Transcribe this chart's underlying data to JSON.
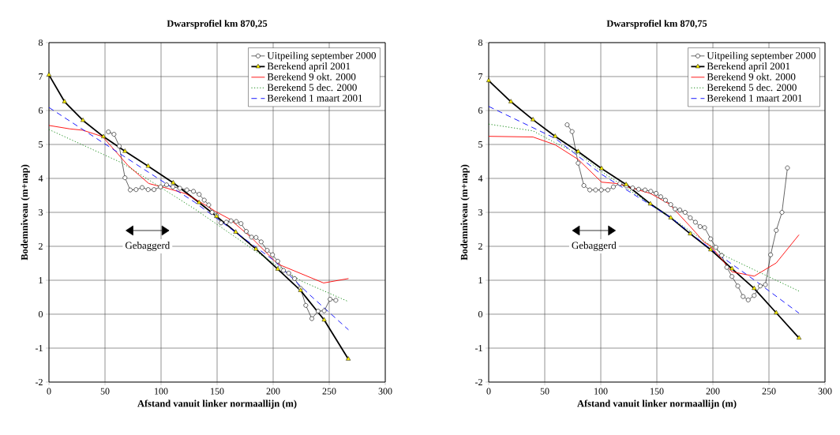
{
  "chart_data": [
    {
      "type": "line",
      "title": "Dwarsprofiel km 870,25",
      "xlabel": "Afstand vanuit linker normaallijn (m)",
      "ylabel": "Bodemniveau (m+nap)",
      "xlim": [
        0,
        300
      ],
      "ylim": [
        -2,
        8
      ],
      "xticks": [
        0,
        50,
        100,
        150,
        200,
        250,
        300
      ],
      "yticks": [
        -2,
        -1,
        0,
        1,
        2,
        3,
        4,
        5,
        6,
        7,
        8
      ],
      "grid": true,
      "legend": "top right",
      "annotations": [
        "Gebaggerd"
      ],
      "series": [
        {
          "name": "Uitpeiling september 2000",
          "color": "#000000",
          "marker": "circle",
          "line_style": "solid",
          "x": [
            53.0,
            58.0,
            62.7,
            67.8,
            72.5,
            77.7,
            83.1,
            88.5,
            93.7,
            99.5,
            104.9,
            110.6,
            116.7,
            123.0,
            128.9,
            134.0,
            138.5,
            142.5,
            145.5,
            149.5,
            153.5,
            158.2,
            162.4,
            167.1,
            171.3,
            176,
            180.7,
            184.7,
            189.3,
            194.7,
            199.4,
            204.1,
            209.2,
            213.9,
            219.1,
            224.4,
            229.1,
            234.5,
            240.1,
            245.5,
            250.8,
            255.9
          ],
          "values": [
            5.37,
            5.3,
            4.95,
            4.02,
            3.66,
            3.67,
            3.73,
            3.67,
            3.67,
            3.75,
            3.81,
            3.75,
            3.71,
            3.66,
            3.62,
            3.53,
            3.36,
            3.22,
            3.0,
            2.91,
            2.69,
            2.71,
            2.75,
            2.73,
            2.67,
            2.44,
            2.27,
            2.26,
            2.13,
            1.88,
            1.75,
            1.56,
            1.29,
            1.21,
            1.05,
            0.76,
            0.26,
            -0.13,
            0.09,
            0.1,
            0.44,
            0.41
          ]
        },
        {
          "name": "Berekend april 2001",
          "color": "#000000",
          "marker": "triangle",
          "line_style": "solid",
          "x": [
            0,
            13.9,
            30.3,
            48.6,
            67.8,
            88.5,
            110.8,
            133.9,
            149.5,
            166.6,
            184.6,
            204.1,
            224.4,
            245.5,
            267
          ],
          "values": [
            7.05,
            6.26,
            5.71,
            5.23,
            4.8,
            4.36,
            3.87,
            3.29,
            2.88,
            2.42,
            1.92,
            1.33,
            0.7,
            -0.17,
            -1.32
          ]
        },
        {
          "name": "Berekend 9 okt. 2000",
          "color": "#ff0000",
          "marker": "none",
          "line_style": "solid",
          "x": [
            0,
            18.5,
            30.3,
            47.9,
            65.5,
            70.2,
            89,
            105.4,
            122,
            141.3,
            148.4,
            161.3,
            181.1,
            202.2,
            206.9,
            245,
            267.2
          ],
          "values": [
            5.56,
            5.46,
            5.42,
            5.23,
            4.57,
            4.39,
            3.85,
            3.71,
            3.55,
            3.18,
            3.03,
            2.8,
            2.24,
            1.54,
            1.44,
            0.92,
            1.05
          ]
        },
        {
          "name": "Berekend 5 dec. 2000",
          "color": "#008000",
          "marker": "none",
          "line_style": "dotted",
          "x": [
            0,
            65.5,
            130,
            200,
            225.6,
            267.2
          ],
          "values": [
            5.44,
            4.45,
            3.1,
            1.5,
            0.97,
            0.37
          ]
        },
        {
          "name": "Berekend 1 maart 2001",
          "color": "#0000ff",
          "marker": "none",
          "line_style": "dashed",
          "x": [
            0,
            65.5,
            130,
            200,
            232.6,
            267.2
          ],
          "values": [
            6.09,
            4.68,
            3.3,
            1.6,
            0.57,
            -0.46
          ]
        }
      ]
    },
    {
      "type": "line",
      "title": "Dwarsprofiel km 870,75",
      "xlabel": "Afstand vanuit linker normaallijn (m)",
      "ylabel": "Bodemniveau (m+nap)",
      "xlim": [
        0,
        300
      ],
      "ylim": [
        -2,
        8
      ],
      "xticks": [
        0,
        50,
        100,
        150,
        200,
        250,
        300
      ],
      "yticks": [
        -2,
        -1,
        0,
        1,
        2,
        3,
        4,
        5,
        6,
        7,
        8
      ],
      "grid": true,
      "legend": "top right",
      "annotations": [
        "Gebaggerd"
      ],
      "series": [
        {
          "name": "Uitpeiling september 2000",
          "color": "#000000",
          "marker": "circle",
          "line_style": "solid",
          "x": [
            70,
            74.4,
            79.8,
            84.9,
            90.2,
            95.4,
            100.5,
            106.3,
            111.2,
            117,
            122.8,
            128.4,
            133.7,
            139.5,
            144.6,
            149.3,
            153.5,
            157.7,
            162.4,
            166.3,
            170.5,
            175.2,
            179.8,
            184.4,
            188.6,
            192.6,
            198,
            202.6,
            207.8,
            212.4,
            217,
            222.2,
            226.9,
            231.5,
            236.8,
            242.2,
            246.8,
            251.5,
            256.5,
            261.6,
            266.5
          ],
          "values": [
            5.58,
            5.38,
            4.45,
            3.79,
            3.66,
            3.66,
            3.66,
            3.66,
            3.75,
            3.85,
            3.78,
            3.72,
            3.68,
            3.66,
            3.62,
            3.56,
            3.46,
            3.36,
            3.23,
            3.1,
            3.07,
            3.0,
            2.84,
            2.71,
            2.58,
            2.55,
            2.22,
            1.97,
            1.73,
            1.38,
            1.11,
            0.83,
            0.52,
            0.42,
            0.55,
            0.83,
            0.87,
            1.75,
            2.47,
            3.0,
            4.31
          ]
        },
        {
          "name": "Berekend april 2001",
          "color": "#000000",
          "marker": "triangle",
          "line_style": "solid",
          "x": [
            0,
            19.8,
            39.5,
            59.3,
            79.8,
            100.7,
            122.6,
            144.2,
            162.4,
            179.8,
            198,
            217,
            236.8,
            256.5,
            276.8
          ],
          "values": [
            6.88,
            6.26,
            5.73,
            5.24,
            4.79,
            4.29,
            3.82,
            3.25,
            2.84,
            2.37,
            1.9,
            1.34,
            0.76,
            0.04,
            -0.7
          ]
        },
        {
          "name": "Berekend 9 okt. 2000",
          "color": "#ff0000",
          "marker": "none",
          "line_style": "solid",
          "x": [
            0,
            39.5,
            59.3,
            79.8,
            100.7,
            114,
            144,
            161,
            179.6,
            192.3,
            198.3,
            217,
            236.8,
            256.5,
            276.8
          ],
          "values": [
            5.24,
            5.22,
            4.99,
            4.56,
            3.89,
            3.85,
            3.56,
            3.25,
            2.59,
            2.12,
            2.0,
            1.25,
            1.12,
            1.51,
            2.34
          ]
        },
        {
          "name": "Berekend 5 dec. 2000",
          "color": "#008000",
          "marker": "none",
          "line_style": "dotted",
          "x": [
            0,
            39.5,
            59.3,
            81.4,
            100.7,
            162.4,
            212.4,
            276.8
          ],
          "values": [
            5.6,
            5.4,
            5.05,
            4.7,
            4.2,
            2.85,
            1.69,
            0.68
          ]
        },
        {
          "name": "Berekend 1 maart 2001",
          "color": "#0000ff",
          "marker": "none",
          "line_style": "dashed",
          "x": [
            0,
            59.3,
            100.7,
            162.4,
            198,
            236.8,
            276.8
          ],
          "values": [
            6.12,
            5.18,
            4.12,
            2.85,
            1.92,
            1.01,
            0.03
          ]
        }
      ]
    }
  ]
}
